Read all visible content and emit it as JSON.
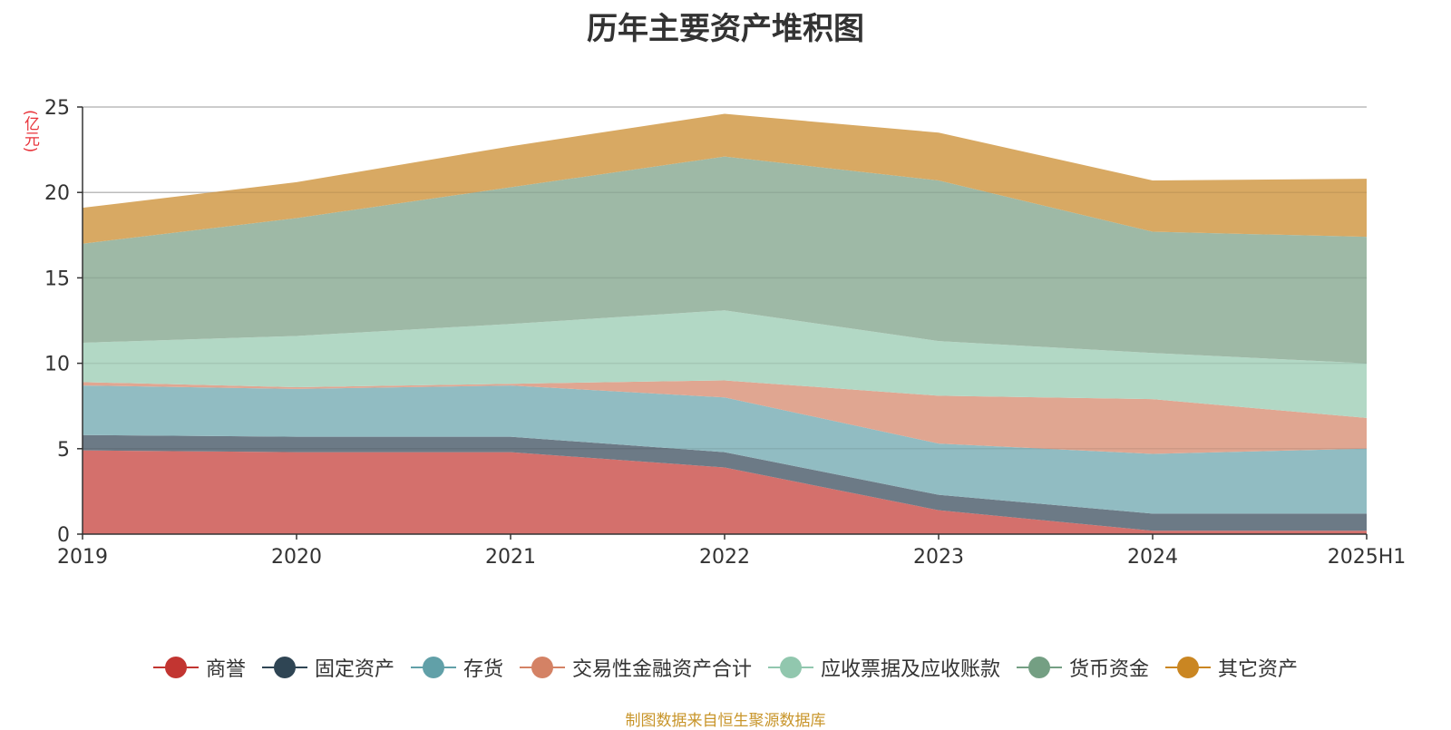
{
  "chart_data": {
    "type": "area",
    "stacked": true,
    "title": "历年主要资产堆积图",
    "unit": "(亿元)",
    "categories": [
      "2019",
      "2020",
      "2021",
      "2022",
      "2023",
      "2024",
      "2025H1"
    ],
    "ylim": [
      0,
      25
    ],
    "yticks": [
      "0",
      "5",
      "10",
      "15",
      "20",
      "25"
    ],
    "grid": true,
    "legend_position": "bottom",
    "series": [
      {
        "name": "商誉",
        "color": "#c23531",
        "fill": "#d4706c",
        "values": [
          4.9,
          4.8,
          4.8,
          3.9,
          1.4,
          0.2,
          0.2
        ]
      },
      {
        "name": "固定资产",
        "color": "#2f4554",
        "fill": "#6c7a86",
        "values": [
          0.9,
          0.9,
          0.9,
          0.9,
          0.9,
          1.0,
          1.0
        ]
      },
      {
        "name": "存货",
        "color": "#61a0a8",
        "fill": "#91bcc2",
        "values": [
          2.9,
          2.8,
          3.0,
          3.2,
          3.0,
          3.5,
          3.8
        ]
      },
      {
        "name": "交易性金融资产合计",
        "color": "#d48265",
        "fill": "#e0a691",
        "values": [
          0.2,
          0.1,
          0.1,
          1.0,
          2.8,
          3.2,
          1.8
        ]
      },
      {
        "name": "应收票据及应收账款",
        "color": "#91c7ae",
        "fill": "#b2d8c5",
        "values": [
          2.3,
          3.0,
          3.5,
          4.1,
          3.2,
          2.7,
          3.2
        ]
      },
      {
        "name": "货币资金",
        "color": "#749f83",
        "fill": "#9eb9a6",
        "values": [
          5.8,
          6.9,
          8.0,
          9.0,
          9.4,
          7.1,
          7.4
        ]
      },
      {
        "name": "其它资产",
        "color": "#ca8622",
        "fill": "#d8a963",
        "values": [
          2.1,
          2.1,
          2.4,
          2.5,
          2.8,
          3.0,
          3.4
        ]
      }
    ]
  },
  "footer": {
    "source": "制图数据来自恒生聚源数据库"
  }
}
